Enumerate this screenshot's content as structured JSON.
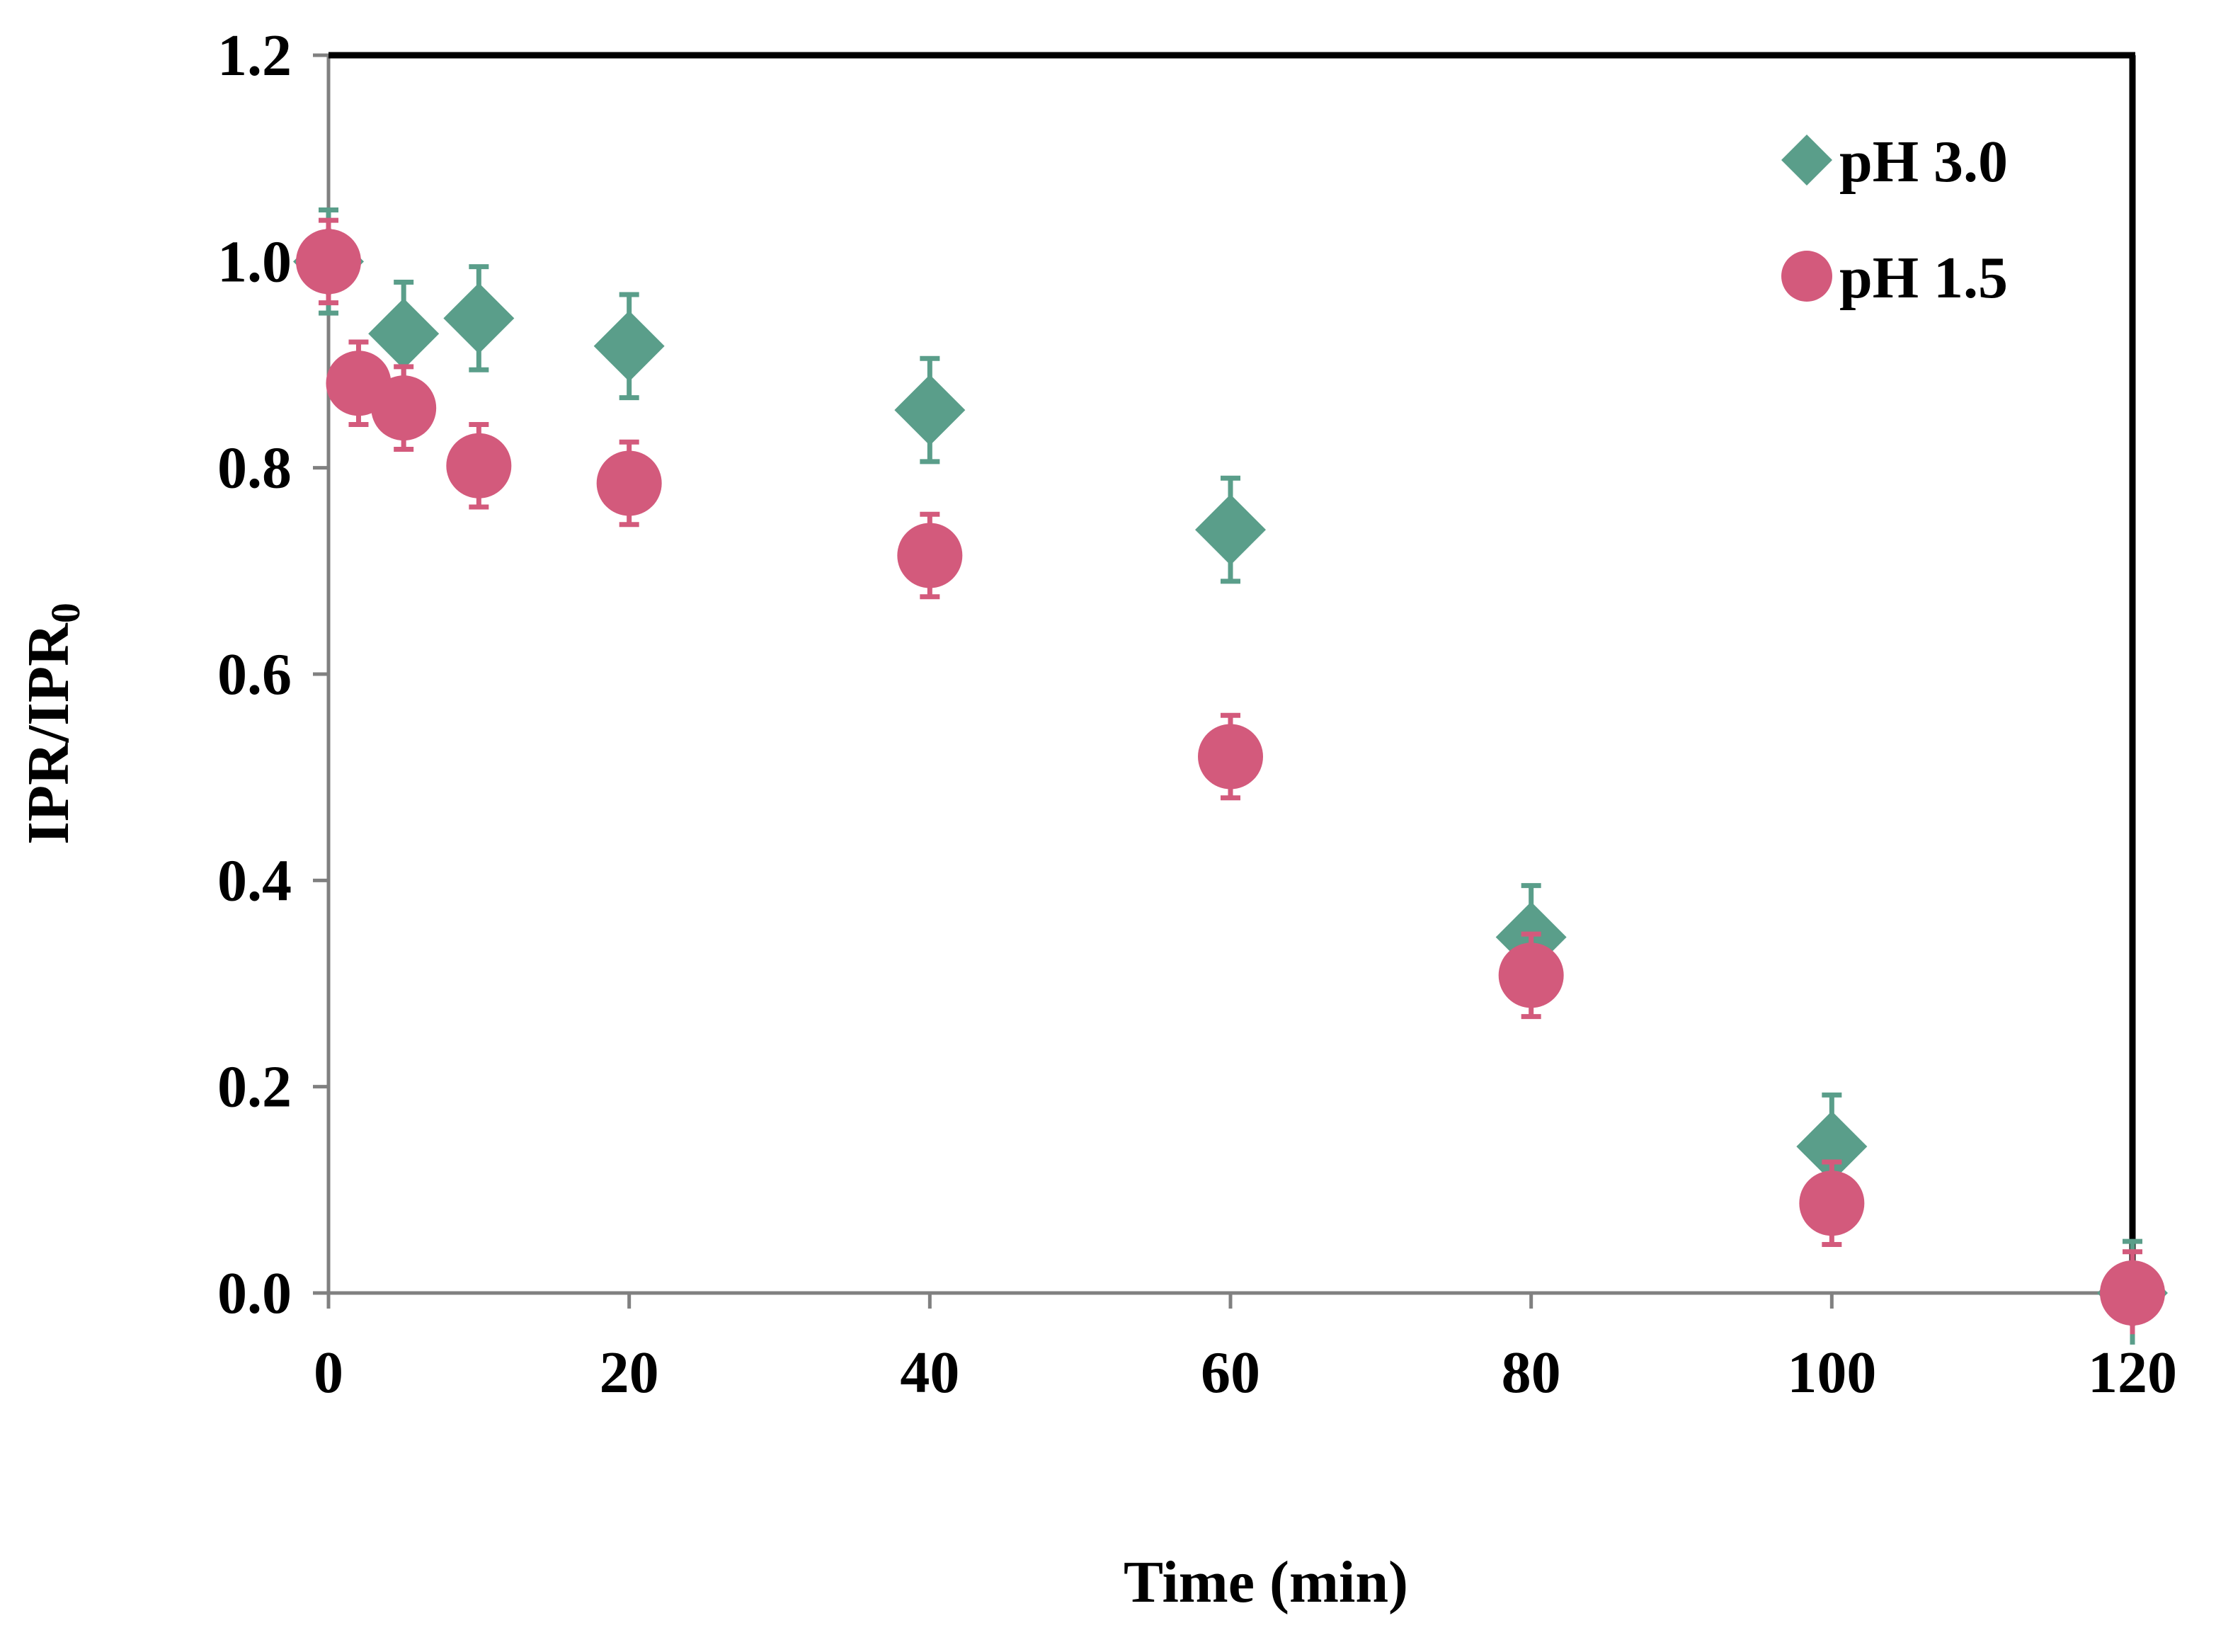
{
  "chart_data": {
    "type": "scatter",
    "title": "",
    "xlabel": "Time (min)",
    "ylabel": "IPR/IPR",
    "ylabel_subscript": "0",
    "xlim": [
      0,
      120
    ],
    "ylim": [
      0,
      1.2
    ],
    "xticks": [
      "0",
      "20",
      "40",
      "60",
      "80",
      "100",
      "120"
    ],
    "yticks": [
      "0.0",
      "0.2",
      "0.4",
      "0.6",
      "0.8",
      "1.0",
      "1.2"
    ],
    "grid": false,
    "legend_position": "top-right",
    "series": [
      {
        "name": "pH 3.0",
        "marker": "diamond",
        "color": "#5a9e8a",
        "x": [
          0,
          5,
          10,
          20,
          40,
          60,
          80,
          100,
          120
        ],
        "y": [
          1.0,
          0.93,
          0.945,
          0.918,
          0.856,
          0.74,
          0.345,
          0.142,
          0.0
        ],
        "err": [
          0.05,
          0.05,
          0.05,
          0.05,
          0.05,
          0.05,
          0.05,
          0.05,
          0.05
        ]
      },
      {
        "name": "pH 1.5",
        "marker": "circle",
        "color": "#d35a7c",
        "x": [
          0,
          2,
          5,
          10,
          20,
          40,
          60,
          80,
          100,
          120
        ],
        "y": [
          1.0,
          0.882,
          0.858,
          0.802,
          0.785,
          0.715,
          0.52,
          0.308,
          0.087,
          0.0
        ],
        "err": [
          0.04,
          0.04,
          0.04,
          0.04,
          0.04,
          0.04,
          0.04,
          0.04,
          0.04,
          0.04
        ]
      }
    ]
  }
}
